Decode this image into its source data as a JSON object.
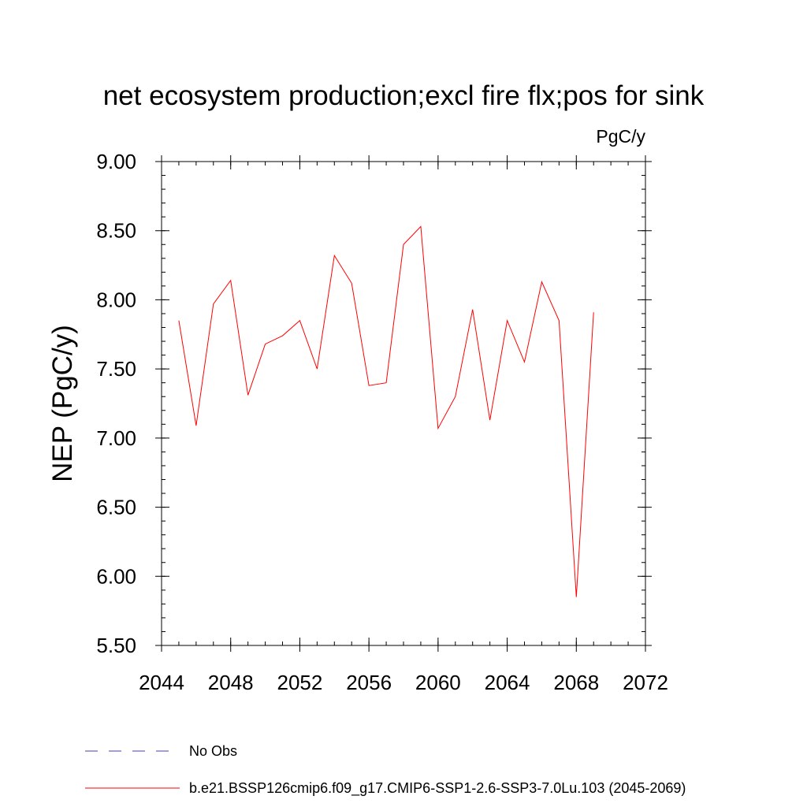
{
  "chart_data": {
    "type": "line",
    "title": "net ecosystem production;excl fire flx;pos for sink",
    "units_label": "PgC/y",
    "ylabel": "NEP  (PgC/y)",
    "xlabel": "",
    "xlim": [
      2044,
      2072
    ],
    "ylim": [
      5.5,
      9.0
    ],
    "x_ticks": [
      2044,
      2048,
      2052,
      2056,
      2060,
      2064,
      2068,
      2072
    ],
    "x_tick_labels": [
      "2044",
      "2048",
      "2052",
      "2056",
      "2060",
      "2064",
      "2068",
      "2072"
    ],
    "x_minor_step": 1,
    "y_ticks": [
      5.5,
      6.0,
      6.5,
      7.0,
      7.5,
      8.0,
      8.5,
      9.0
    ],
    "y_tick_labels": [
      "5.50",
      "6.00",
      "6.50",
      "7.00",
      "7.50",
      "8.00",
      "8.50",
      "9.00"
    ],
    "y_minor_step": 0.1,
    "grid": false,
    "series": [
      {
        "name": "b.e21.BSSP126cmip6.f09_g17.CMIP6-SSP1-2.6-SSP3-7.0Lu.103 (2045-2069)",
        "color": "#ff0000",
        "x": [
          2045,
          2046,
          2047,
          2048,
          2049,
          2050,
          2051,
          2052,
          2053,
          2054,
          2055,
          2056,
          2057,
          2058,
          2059,
          2060,
          2061,
          2062,
          2063,
          2064,
          2065,
          2066,
          2067,
          2068,
          2069
        ],
        "values": [
          7.85,
          7.09,
          7.97,
          8.14,
          7.31,
          7.68,
          7.74,
          7.85,
          7.5,
          8.32,
          8.12,
          7.38,
          7.4,
          8.4,
          8.53,
          7.07,
          7.3,
          7.93,
          7.13,
          7.85,
          7.55,
          8.13,
          7.85,
          5.85,
          7.91
        ]
      }
    ],
    "legend": {
      "placement": "bottom-left",
      "entries": [
        {
          "label": "No Obs",
          "color": "#4b3c9e",
          "style": "dashed"
        },
        {
          "label": "b.e21.BSSP126cmip6.f09_g17.CMIP6-SSP1-2.6-SSP3-7.0Lu.103 (2045-2069)",
          "color": "#ff0000",
          "style": "solid"
        }
      ]
    }
  }
}
